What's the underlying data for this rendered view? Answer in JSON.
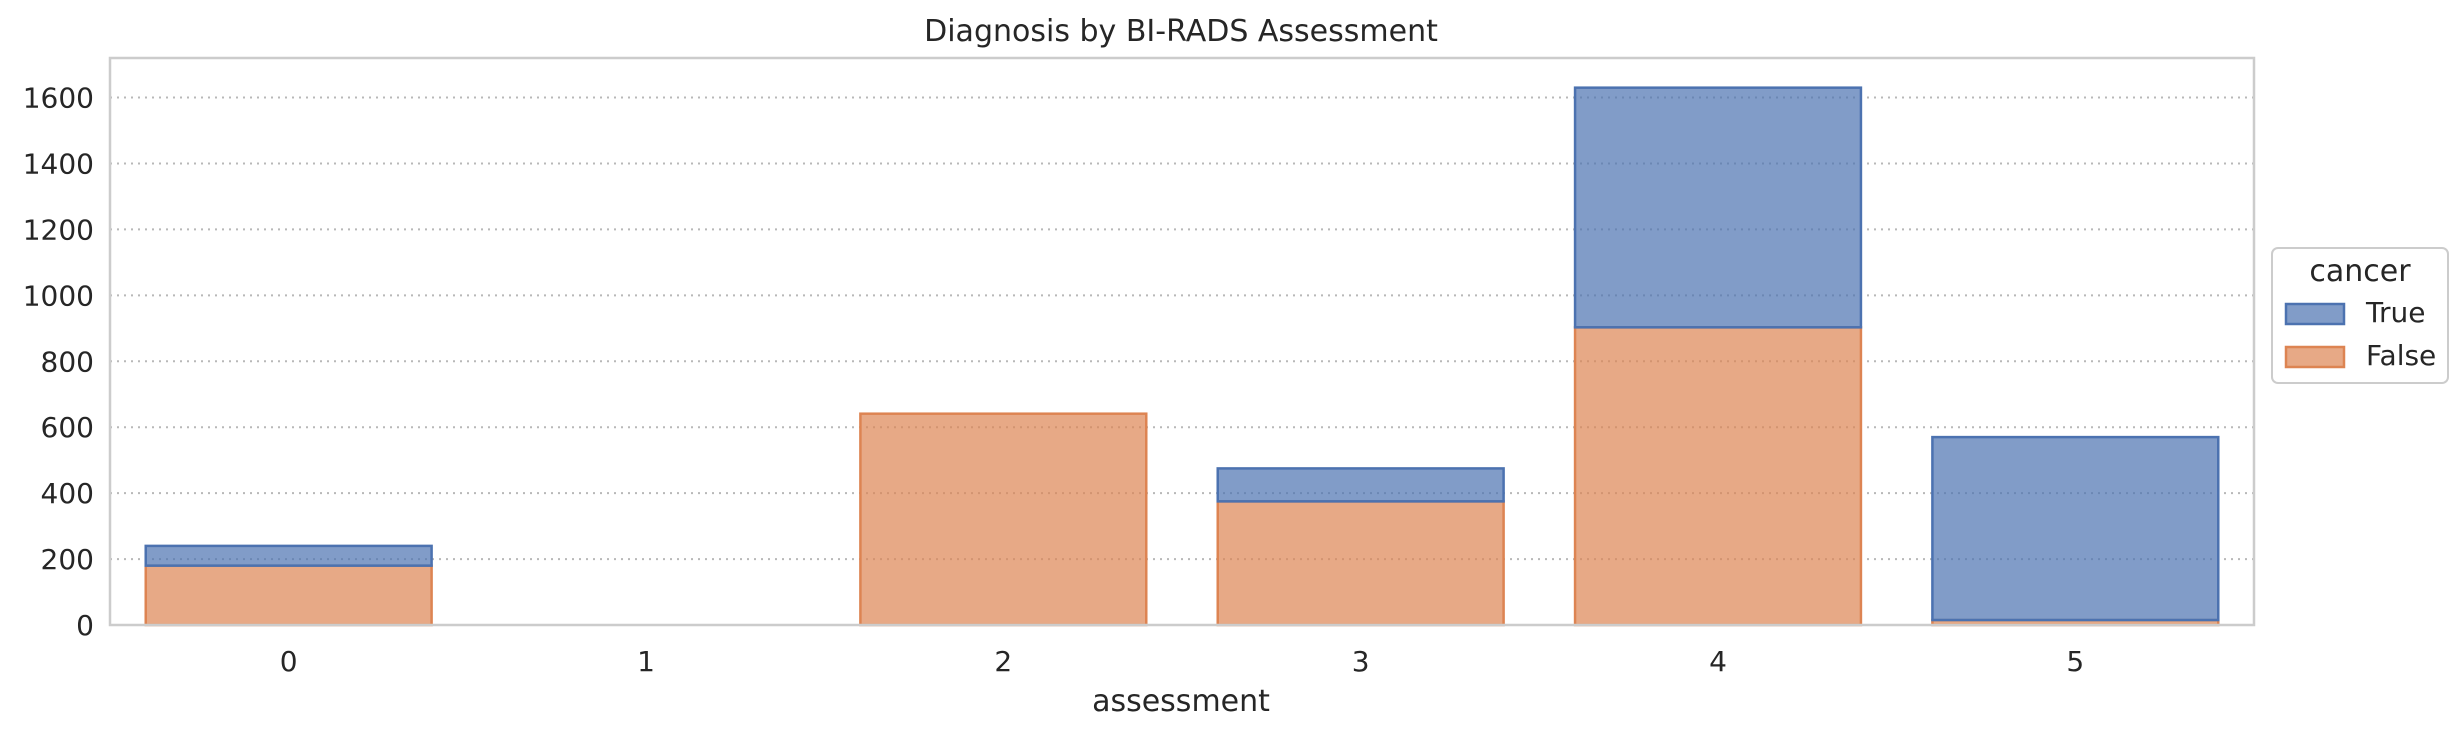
{
  "chart_data": {
    "type": "bar",
    "stacked": true,
    "title": "Diagnosis by BI-RADS Assessment",
    "xlabel": "assessment",
    "ylabel": "",
    "categories": [
      "0",
      "1",
      "2",
      "3",
      "4",
      "5"
    ],
    "ylim": [
      0,
      1720
    ],
    "yticks": [
      0,
      200,
      400,
      600,
      800,
      1000,
      1200,
      1400,
      1600
    ],
    "grid": true,
    "legend": {
      "title": "cancer",
      "placement": "center-right outside"
    },
    "series": [
      {
        "name": "False",
        "values": [
          180,
          0,
          641,
          375,
          903,
          15
        ],
        "color": "#dd8452"
      },
      {
        "name": "True",
        "values": [
          60,
          0,
          0,
          100,
          727,
          555
        ],
        "color": "#4c72b0"
      }
    ]
  }
}
